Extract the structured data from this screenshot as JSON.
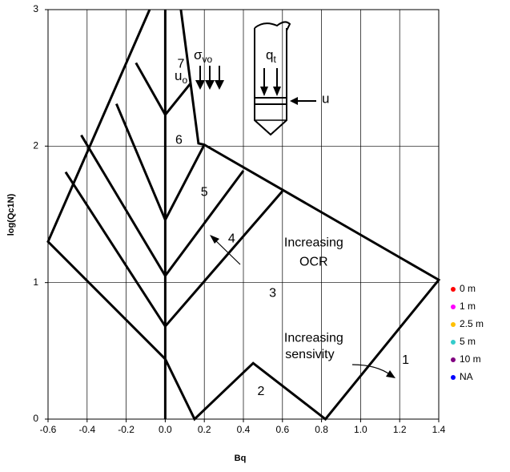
{
  "chart_data": {
    "type": "zone",
    "x_label": "Bq",
    "y_label": "log(Qc1N)",
    "xlim": [
      -0.6,
      1.4
    ],
    "ylim": [
      0,
      3
    ],
    "xticks": [
      -0.6,
      -0.4,
      -0.2,
      {
        "value": 0,
        "label": "0.0"
      },
      0.2,
      0.4,
      0.6,
      0.8,
      {
        "value": 1,
        "label": "1.0"
      },
      1.2,
      1.4
    ],
    "yticks": [
      0,
      1,
      2,
      3
    ],
    "grid": true,
    "legend": "right",
    "series": [
      {
        "name": "0 m",
        "color": "#ff0000",
        "values": []
      },
      {
        "name": "1 m",
        "color": "#ff00ff",
        "values": []
      },
      {
        "name": "2.5 m",
        "color": "#ffc000",
        "values": []
      },
      {
        "name": "5 m",
        "color": "#33cccc",
        "values": []
      },
      {
        "name": "10 m",
        "color": "#800080",
        "values": []
      },
      {
        "name": "NA",
        "color": "#0000ff",
        "values": []
      }
    ],
    "boundaries": [
      {
        "x": [
          -0.08,
          -0.6,
          0,
          0.15,
          0.45,
          0.82,
          1.4,
          0.2,
          0.17,
          0.08
        ],
        "y": [
          3,
          1.3,
          0.44,
          0,
          0.41,
          0,
          1.02,
          2.01,
          2.02,
          3
        ]
      },
      {
        "x": [
          0,
          0
        ],
        "y": [
          0,
          3
        ]
      },
      {
        "x": [
          -0.51,
          0,
          0.6
        ],
        "y": [
          1.81,
          0.68,
          1.67
        ]
      },
      {
        "x": [
          -0.43,
          0,
          0.4
        ],
        "y": [
          2.08,
          1.05,
          1.82
        ]
      },
      {
        "x": [
          -0.25,
          0,
          0.2
        ],
        "y": [
          2.31,
          1.46,
          2.01
        ]
      },
      {
        "x": [
          -0.15,
          0,
          0.13
        ],
        "y": [
          2.61,
          2.23,
          2.46
        ]
      }
    ],
    "annotations": [
      {
        "text": "1",
        "x": 1.23,
        "y": 0.43
      },
      {
        "text": "2",
        "x": 0.49,
        "y": 0.2
      },
      {
        "text": "3",
        "x": 0.55,
        "y": 0.92
      },
      {
        "text": "4",
        "x": 0.34,
        "y": 1.32
      },
      {
        "text": "5",
        "x": 0.2,
        "y": 1.66
      },
      {
        "text": "6",
        "x": 0.07,
        "y": 2.04
      },
      {
        "text": "7",
        "x": 0.08,
        "y": 2.6
      },
      {
        "text": "Increasing",
        "x": 0.76,
        "y": 1.29
      },
      {
        "text": "OCR",
        "x": 0.76,
        "y": 1.15
      },
      {
        "text": "Increasing",
        "x": 0.76,
        "y": 0.59
      },
      {
        "text": "sensivity",
        "x": 0.74,
        "y": 0.47
      }
    ],
    "probe_labels": [
      {
        "text": "u",
        "sub": "o"
      },
      {
        "text": "σ",
        "sub": "vo"
      },
      {
        "text": "q",
        "sub": "t"
      },
      {
        "text": "u"
      }
    ]
  }
}
